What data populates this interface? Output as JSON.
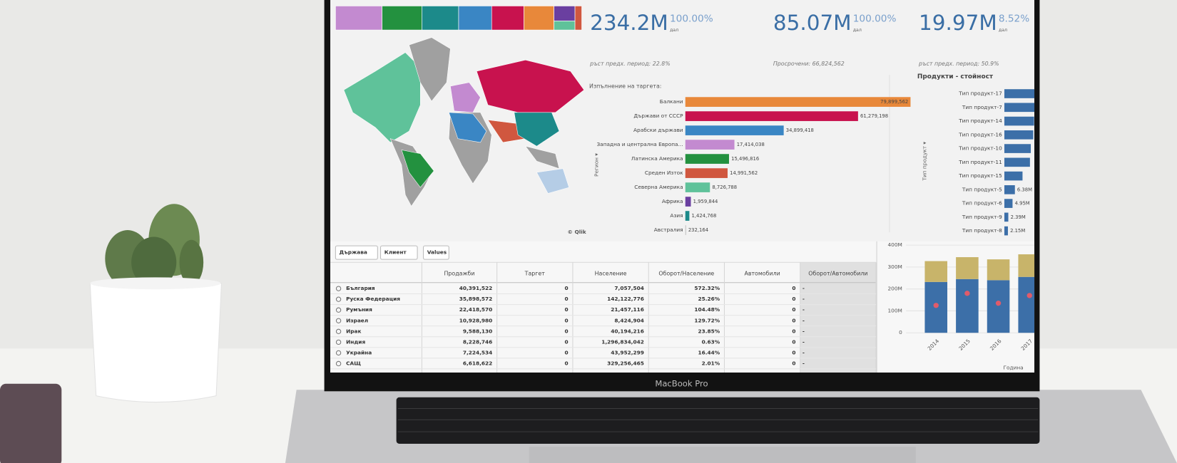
{
  "laptop_label": "MacBook Pro",
  "kpis": [
    {
      "value": "234.2M",
      "percent": "100.00%",
      "unit": "дал",
      "note": "ръст предх. период: 22.8%"
    },
    {
      "value": "85.07M",
      "percent": "100.00%",
      "unit": "дал",
      "note": "Просрочени: 66,824,562"
    },
    {
      "value": "19.97M",
      "percent": "8.52%",
      "unit": "дал",
      "note": "ръст предх. период: 50.9%"
    }
  ],
  "map_credit": "© Qlik",
  "target_chart": {
    "type": "hbar",
    "title": "Изпълнение на таргета:",
    "axis_label": "Регион ▾",
    "categories": [
      "Балкани",
      "Държави от СССР",
      "Арабски държави",
      "Западна и централна Европа...",
      "Латинска Америка",
      "Среден Изток",
      "Северна Америка",
      "Африка",
      "Азия",
      "Австралия"
    ],
    "values": [
      79899562,
      61279198,
      34899418,
      17414038,
      15496816,
      14991562,
      8726788,
      1959844,
      1424768,
      232164
    ],
    "value_labels": [
      "79,899,562",
      "61,279,198",
      "34,899,418",
      "17,414,038",
      "15,496,816",
      "14,991,562",
      "8,726,788",
      "1,959,844",
      "1,424,768",
      "232,164"
    ],
    "colors": [
      "#e8883a",
      "#c8124e",
      "#3a86c4",
      "#c38ad0",
      "#23913f",
      "#d0573f",
      "#5fc29a",
      "#6a3fa0",
      "#1c8a8a",
      "#b8b8b8"
    ]
  },
  "products_chart": {
    "type": "hbar",
    "title": "Продукти - стойност",
    "axis_label": "Тип продукт ▾",
    "color": "#3c6fa8",
    "categories": [
      "Тип продукт-17",
      "Тип продукт-7",
      "Тип продукт-14",
      "Тип продукт-16",
      "Тип продукт-10",
      "Тип продукт-11",
      "Тип продукт-15",
      "Тип продукт-5",
      "Тип продукт-6",
      "Тип продукт-9",
      "Тип продукт-8"
    ],
    "values": [
      20000000,
      19000000,
      18000000,
      17500000,
      16000000,
      15500000,
      11000000,
      6380000,
      4950000,
      2390000,
      2150000
    ],
    "value_labels": [
      null,
      null,
      null,
      null,
      null,
      null,
      null,
      "6.38M",
      "4.95M",
      "2.39M",
      "2.15M"
    ]
  },
  "year_chart": {
    "type": "stacked_bar",
    "x_label": "Година",
    "categories": [
      "2014",
      "2015",
      "2016",
      "2017"
    ],
    "ylim": [
      0,
      400000000
    ],
    "yticks": [
      0,
      {
        "value": 100000000,
        "label": "100M"
      },
      {
        "value": 200000000,
        "label": "200M"
      },
      {
        "value": 300000000,
        "label": "300M"
      },
      {
        "value": 400000000,
        "label": "400M"
      }
    ],
    "series": [
      {
        "kind": "bar",
        "color": "#3c6fa8",
        "values": [
          232000000,
          245000000,
          240000000,
          255000000
        ]
      },
      {
        "kind": "bar",
        "color": "#c8b46a",
        "values": [
          95000000,
          100000000,
          95000000,
          103000000
        ]
      },
      {
        "kind": "point",
        "color": "#e05b6a",
        "values": [
          125000000,
          180000000,
          135000000,
          170000000
        ]
      }
    ]
  },
  "table": {
    "buttons": [
      "Държава",
      "Клиент",
      "Values"
    ],
    "columns": [
      "Продажби",
      "Таргет",
      "Население",
      "Оборот/Население",
      "Автомобили",
      "Оборот/Автомобили"
    ],
    "rows": [
      [
        "България",
        "40,391,522",
        "0",
        "7,057,504",
        "572.32%",
        "0",
        "-"
      ],
      [
        "Руска Федерация",
        "35,898,572",
        "0",
        "142,122,776",
        "25.26%",
        "0",
        "-"
      ],
      [
        "Румъния",
        "22,418,570",
        "0",
        "21,457,116",
        "104.48%",
        "0",
        "-"
      ],
      [
        "Израел",
        "10,928,980",
        "0",
        "8,424,904",
        "129.72%",
        "0",
        "-"
      ],
      [
        "Ирак",
        "9,588,130",
        "0",
        "40,194,216",
        "23.85%",
        "0",
        "-"
      ],
      [
        "Индия",
        "8,228,746",
        "0",
        "1,296,834,042",
        "0.63%",
        "0",
        "-"
      ],
      [
        "Украйна",
        "7,224,534",
        "0",
        "43,952,299",
        "16.44%",
        "0",
        "-"
      ],
      [
        "САЩ",
        "6,618,622",
        "0",
        "329,256,465",
        "2.01%",
        "0",
        "-"
      ]
    ]
  }
}
